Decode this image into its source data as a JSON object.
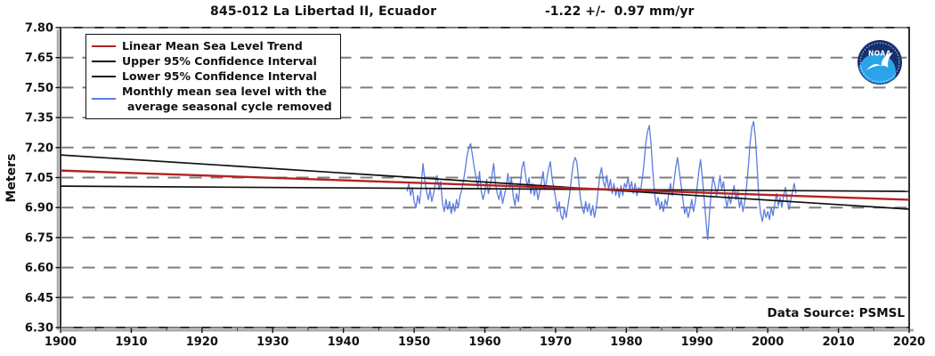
{
  "header": {
    "station_title": "845-012 La Libertad II, Ecuador",
    "trend_text": "-1.22 +/-  0.97 mm/yr"
  },
  "ylabel": "Meters",
  "data_source": "Data Source: PSMSL",
  "noaa_logo": {
    "text": "NOAA"
  },
  "colors": {
    "trend_red": "#b22222",
    "confidence_black": "#111111",
    "monthly_blue": "#5c7ce0",
    "gridline_gray": "#7e7e7e",
    "axis_shadow_gray": "#a8a8a8"
  },
  "legend": {
    "items": [
      {
        "label": "Linear Mean Sea Level Trend",
        "color": "#b22222"
      },
      {
        "label": "Upper 95% Confidence Interval",
        "color": "#111111"
      },
      {
        "label": "Lower 95% Confidence Interval",
        "color": "#111111"
      },
      {
        "label": "Monthly mean sea level with the",
        "label2": "average seasonal cycle removed",
        "color": "#5c7ce0"
      }
    ]
  },
  "chart_data": {
    "type": "line",
    "title": "845-012 La Libertad II, Ecuador",
    "trend_label": "-1.22 +/- 0.97 mm/yr",
    "ylabel": "Meters",
    "xlim": [
      1900,
      2020
    ],
    "ylim": [
      6.3,
      7.8
    ],
    "x_ticks": [
      1900,
      1910,
      1920,
      1930,
      1940,
      1950,
      1960,
      1970,
      1980,
      1990,
      2000,
      2010,
      2020
    ],
    "x_minor_tick_step": 5,
    "y_ticks": [
      "7.80",
      "7.65",
      "7.50",
      "7.35",
      "7.20",
      "7.05",
      "6.90",
      "6.75",
      "6.60",
      "6.45",
      "6.30"
    ],
    "grid": "horizontal-dashed",
    "legend_position": "top-left",
    "series": [
      {
        "name": "Linear Mean Sea Level Trend",
        "color": "#b22222",
        "x": [
          1900,
          2020
        ],
        "y": [
          7.085,
          6.939
        ]
      },
      {
        "name": "Upper 95% Confidence Interval",
        "color": "#111111",
        "x": [
          1900,
          2020
        ],
        "y": [
          7.007,
          6.981
        ]
      },
      {
        "name": "Lower 95% Confidence Interval",
        "color": "#111111",
        "x": [
          1900,
          2020
        ],
        "y": [
          7.163,
          6.892
        ]
      },
      {
        "name": "Monthly mean sea level with the average seasonal cycle removed",
        "color": "#5c7ce0",
        "start_year": 1949.0,
        "step_years": 0.25,
        "values": [
          6.98,
          7.02,
          6.96,
          7.0,
          6.93,
          6.9,
          6.96,
          6.92,
          7.0,
          7.12,
          7.04,
          6.98,
          6.94,
          6.99,
          6.93,
          6.97,
          7.02,
          7.06,
          6.99,
          7.03,
          6.92,
          6.88,
          6.94,
          6.89,
          6.93,
          6.87,
          6.92,
          6.88,
          6.94,
          6.9,
          6.96,
          6.99,
          7.04,
          7.1,
          7.16,
          7.2,
          7.22,
          7.16,
          7.1,
          7.05,
          7.0,
          7.08,
          6.98,
          6.94,
          6.98,
          7.04,
          6.97,
          7.01,
          7.06,
          7.12,
          7.02,
          6.97,
          6.94,
          6.99,
          6.92,
          6.96,
          7.0,
          7.07,
          7.0,
          7.05,
          6.96,
          6.91,
          6.97,
          6.93,
          7.02,
          7.1,
          7.13,
          7.06,
          7.0,
          7.05,
          6.97,
          7.02,
          6.96,
          7.01,
          6.94,
          6.98,
          7.03,
          7.08,
          6.99,
          7.04,
          7.09,
          7.13,
          7.05,
          7.0,
          6.95,
          6.88,
          6.93,
          6.86,
          6.84,
          6.9,
          6.85,
          6.91,
          6.97,
          7.05,
          7.12,
          7.15,
          7.13,
          7.04,
          6.95,
          6.9,
          6.87,
          6.93,
          6.88,
          6.92,
          6.86,
          6.91,
          6.85,
          6.9,
          6.98,
          7.06,
          7.1,
          7.03,
          7.0,
          7.06,
          6.99,
          7.04,
          6.97,
          7.02,
          6.96,
          7.0,
          6.95,
          7.01,
          6.96,
          7.02,
          7.0,
          7.05,
          6.99,
          7.03,
          6.97,
          7.02,
          6.96,
          7.0,
          6.98,
          7.04,
          7.12,
          7.22,
          7.28,
          7.31,
          7.22,
          7.08,
          6.97,
          6.91,
          6.95,
          6.89,
          6.93,
          6.88,
          6.94,
          6.91,
          6.97,
          7.02,
          6.96,
          7.03,
          7.1,
          7.15,
          7.08,
          7.01,
          6.94,
          6.87,
          6.9,
          6.85,
          6.89,
          6.94,
          6.88,
          6.93,
          7.0,
          7.08,
          7.14,
          7.05,
          6.95,
          6.84,
          6.74,
          6.86,
          6.97,
          7.05,
          7.02,
          6.96,
          7.0,
          7.06,
          6.99,
          7.03,
          6.95,
          6.9,
          6.96,
          6.92,
          6.97,
          7.01,
          6.94,
          6.98,
          6.9,
          6.94,
          6.88,
          6.93,
          7.0,
          7.1,
          7.22,
          7.3,
          7.33,
          7.25,
          7.1,
          6.95,
          6.87,
          6.83,
          6.89,
          6.85,
          6.88,
          6.84,
          6.9,
          6.86,
          6.92,
          6.97,
          6.91,
          6.95,
          6.9,
          6.96,
          7.0,
          6.94,
          6.89,
          6.94,
          6.98,
          7.02,
          6.97
        ]
      }
    ]
  }
}
